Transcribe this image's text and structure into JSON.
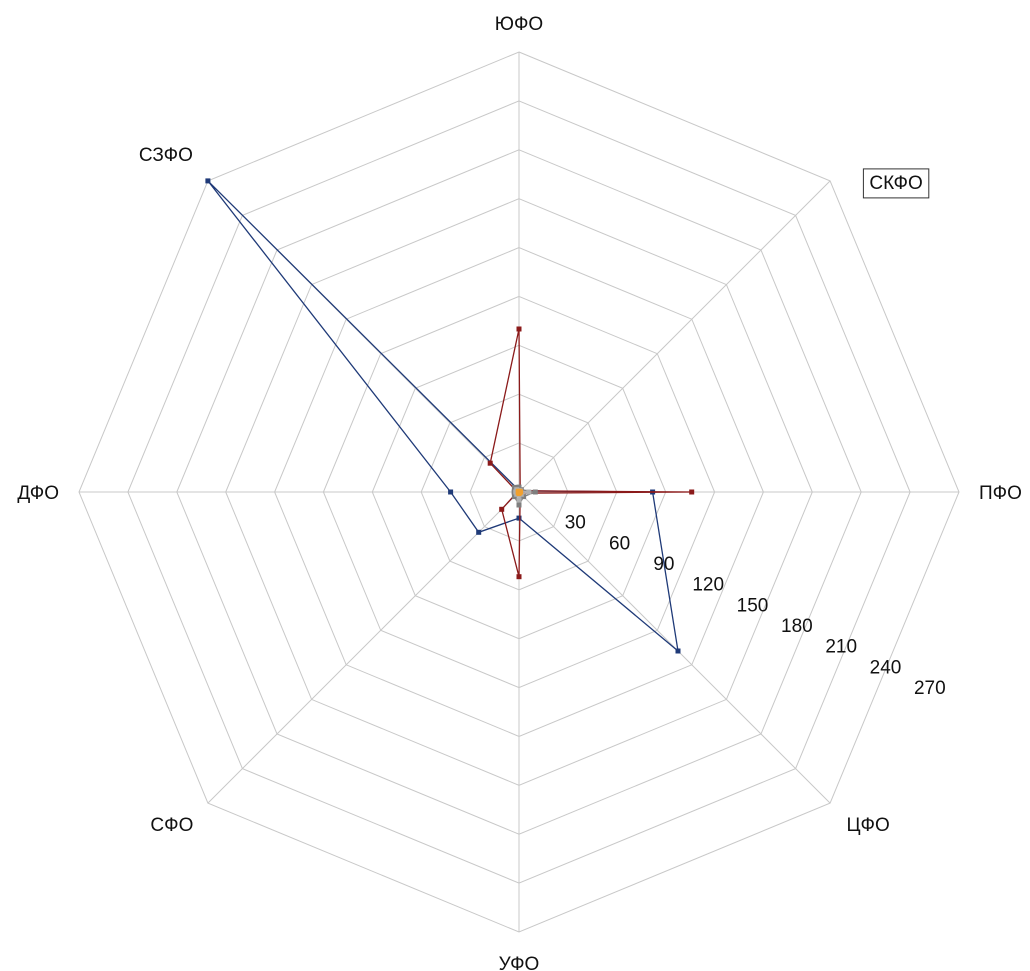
{
  "chart_data": {
    "type": "radar",
    "categories": [
      "ЮФО",
      "СКФО",
      "ПФО",
      "ЦФО",
      "УФО",
      "СФО",
      "ДФО",
      "СЗФО"
    ],
    "highlighted_category": "СКФО",
    "radial_ticks": [
      "30",
      "60",
      "90",
      "120",
      "150",
      "180",
      "210",
      "240",
      "270"
    ],
    "rlim": [
      0,
      270
    ],
    "grid": true,
    "legend": "none",
    "series": [
      {
        "color": "#1f3a78",
        "values": [
          1,
          1,
          82,
          138,
          16,
          35,
          42,
          295
        ]
      },
      {
        "color": "#8b1a1a",
        "values": [
          100,
          1,
          106,
          1,
          52,
          15,
          1,
          25
        ]
      },
      {
        "color": "#7f7f7f",
        "values": [
          3,
          2,
          10,
          4,
          8,
          4,
          3,
          4
        ]
      },
      {
        "color": "#b0b0b0",
        "values": [
          1,
          1,
          6,
          2,
          5,
          2,
          2,
          2
        ]
      },
      {
        "color": "#f0a030",
        "values": [
          0.5,
          0.5,
          1,
          0.5,
          1,
          0.5,
          0.5,
          0.5
        ]
      }
    ]
  }
}
